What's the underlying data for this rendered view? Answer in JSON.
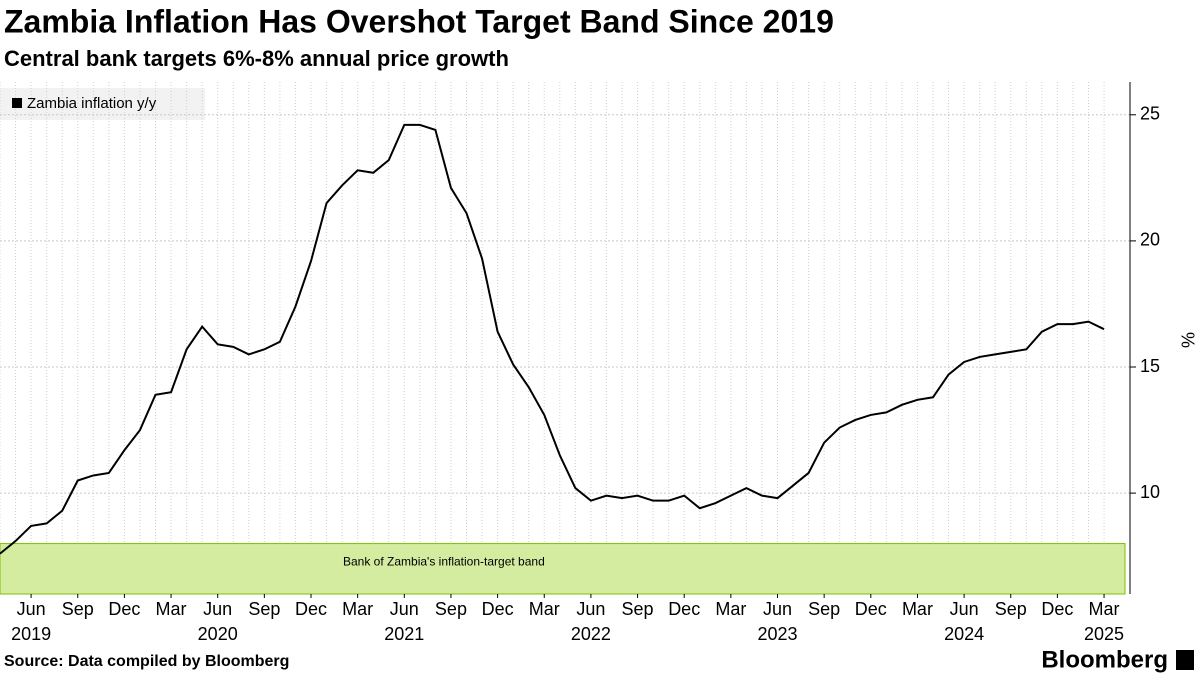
{
  "chart_data": {
    "type": "line",
    "title": "Zambia Inflation Has Overshot Target Band Since 2019",
    "subtitle": "Central bank targets 6%-8% annual price growth",
    "y_axis_label": "%",
    "source": "Source: Data compiled by Bloomberg",
    "brand": "Bloomberg",
    "x": [
      "2019-04",
      "2019-05",
      "2019-06",
      "2019-07",
      "2019-08",
      "2019-09",
      "2019-10",
      "2019-11",
      "2019-12",
      "2020-01",
      "2020-02",
      "2020-03",
      "2020-04",
      "2020-05",
      "2020-06",
      "2020-07",
      "2020-08",
      "2020-09",
      "2020-10",
      "2020-11",
      "2020-12",
      "2021-01",
      "2021-02",
      "2021-03",
      "2021-04",
      "2021-05",
      "2021-06",
      "2021-07",
      "2021-08",
      "2021-09",
      "2021-10",
      "2021-11",
      "2021-12",
      "2022-01",
      "2022-02",
      "2022-03",
      "2022-04",
      "2022-05",
      "2022-06",
      "2022-07",
      "2022-08",
      "2022-09",
      "2022-10",
      "2022-11",
      "2022-12",
      "2023-01",
      "2023-02",
      "2023-03",
      "2023-04",
      "2023-05",
      "2023-06",
      "2023-07",
      "2023-08",
      "2023-09",
      "2023-10",
      "2023-11",
      "2023-12",
      "2024-01",
      "2024-02",
      "2024-03",
      "2024-04",
      "2024-05",
      "2024-06",
      "2024-07",
      "2024-08",
      "2024-09",
      "2024-10",
      "2024-11",
      "2024-12",
      "2025-01",
      "2025-02",
      "2025-03"
    ],
    "series": [
      {
        "name": "Zambia inflation y/y",
        "color": "#000000",
        "values": [
          7.6,
          8.1,
          8.7,
          8.8,
          9.3,
          10.5,
          10.7,
          10.8,
          11.7,
          12.5,
          13.9,
          14.0,
          15.7,
          16.6,
          15.9,
          15.8,
          15.5,
          15.7,
          16.0,
          17.4,
          19.2,
          21.5,
          22.2,
          22.8,
          22.7,
          23.2,
          24.6,
          24.6,
          24.4,
          22.1,
          21.1,
          19.3,
          16.4,
          15.1,
          14.2,
          13.1,
          11.5,
          10.2,
          9.7,
          9.9,
          9.8,
          9.9,
          9.7,
          9.7,
          9.9,
          9.4,
          9.6,
          9.9,
          10.2,
          9.9,
          9.8,
          10.3,
          10.8,
          12.0,
          12.6,
          12.9,
          13.1,
          13.2,
          13.5,
          13.7,
          13.8,
          14.7,
          15.2,
          15.4,
          15.5,
          15.6,
          15.7,
          16.4,
          16.7,
          16.7,
          16.8,
          16.5
        ]
      }
    ],
    "band": {
      "from": 6,
      "to": 8,
      "label": "Bank of Zambia's inflation-target band",
      "color": "#d3eca0"
    },
    "ylim": [
      6,
      26.3
    ],
    "yticks": [
      10,
      15,
      20,
      25
    ],
    "xticks": [
      {
        "value": "2019-06",
        "label": "Jun"
      },
      {
        "value": "2019-09",
        "label": "Sep"
      },
      {
        "value": "2019-12",
        "label": "Dec"
      },
      {
        "value": "2020-03",
        "label": "Mar"
      },
      {
        "value": "2020-06",
        "label": "Jun"
      },
      {
        "value": "2020-09",
        "label": "Sep"
      },
      {
        "value": "2020-12",
        "label": "Dec"
      },
      {
        "value": "2021-03",
        "label": "Mar"
      },
      {
        "value": "2021-06",
        "label": "Jun"
      },
      {
        "value": "2021-09",
        "label": "Sep"
      },
      {
        "value": "2021-12",
        "label": "Dec"
      },
      {
        "value": "2022-03",
        "label": "Mar"
      },
      {
        "value": "2022-06",
        "label": "Jun"
      },
      {
        "value": "2022-09",
        "label": "Sep"
      },
      {
        "value": "2022-12",
        "label": "Dec"
      },
      {
        "value": "2023-03",
        "label": "Mar"
      },
      {
        "value": "2023-06",
        "label": "Jun"
      },
      {
        "value": "2023-09",
        "label": "Sep"
      },
      {
        "value": "2023-12",
        "label": "Dec"
      },
      {
        "value": "2024-03",
        "label": "Mar"
      },
      {
        "value": "2024-06",
        "label": "Jun"
      },
      {
        "value": "2024-09",
        "label": "Sep"
      },
      {
        "value": "2024-12",
        "label": "Dec"
      },
      {
        "value": "2025-03",
        "label": "Mar"
      }
    ],
    "x_year_labels": [
      {
        "value": "2019-06",
        "label": "2019"
      },
      {
        "value": "2020-06",
        "label": "2020"
      },
      {
        "value": "2021-06",
        "label": "2021"
      },
      {
        "value": "2022-06",
        "label": "2022"
      },
      {
        "value": "2023-06",
        "label": "2023"
      },
      {
        "value": "2024-06",
        "label": "2024"
      },
      {
        "value": "2025-03",
        "label": "2025"
      }
    ],
    "grid": true
  }
}
